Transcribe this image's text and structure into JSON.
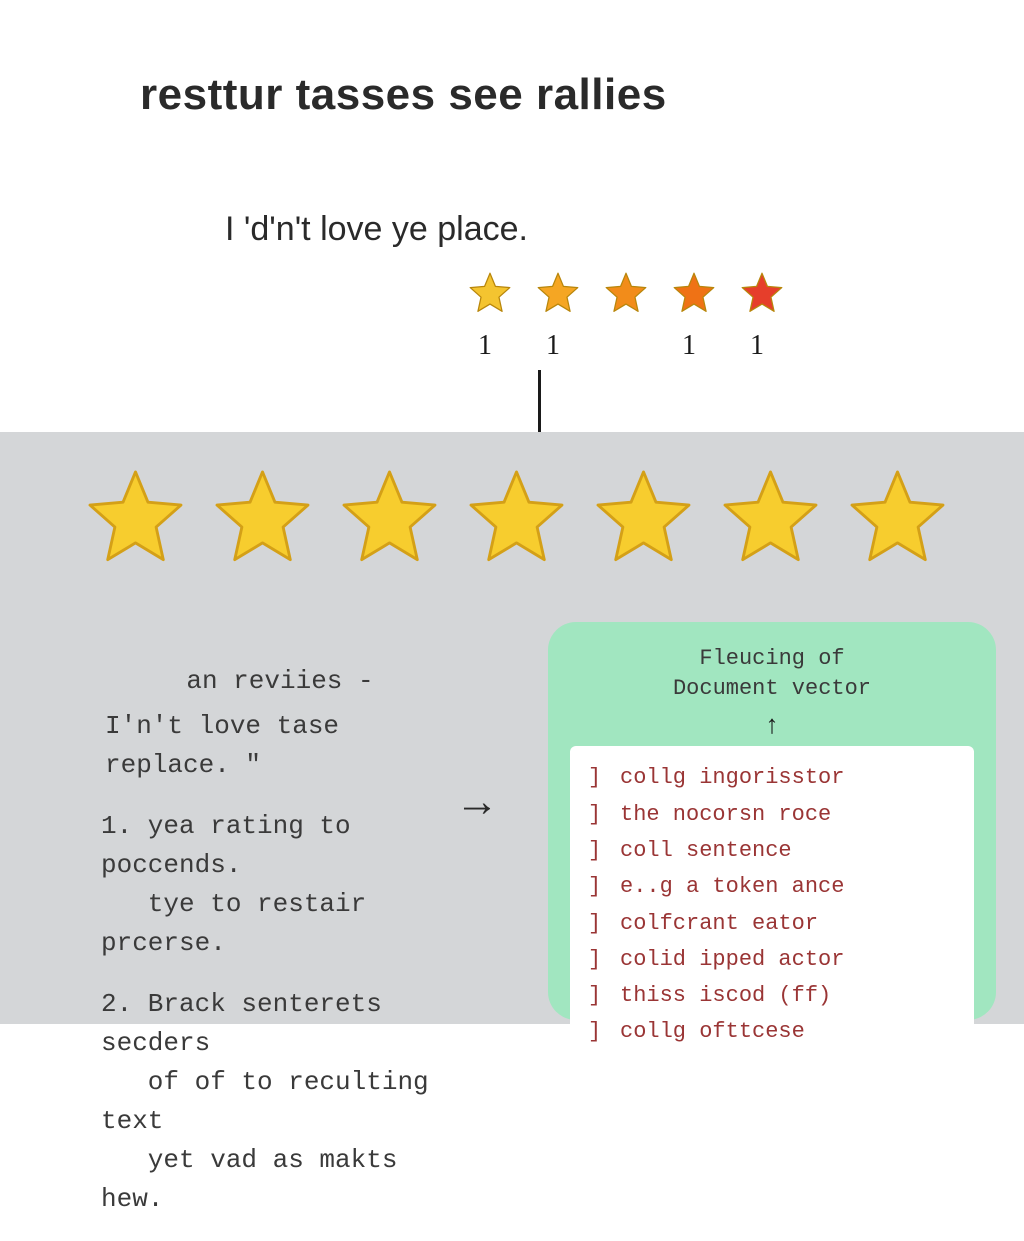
{
  "title": "resttur tasses see rallies",
  "review_text": "I 'd'n't love ye place.",
  "small_stars": {
    "count": 5,
    "colors": [
      "#f4c430",
      "#f5a623",
      "#f28c1a",
      "#ef7215",
      "#e63e2b"
    ],
    "stroke": "#b8860b",
    "size": 50
  },
  "star_numbers": [
    "1",
    "1",
    "",
    "1",
    "1"
  ],
  "number_fontsize": 28,
  "connector_color": "#1a1a1a",
  "big_stars": {
    "count": 7,
    "fill": "#f7cd2e",
    "stroke": "#d4a017",
    "size": 115
  },
  "gray_panel_bg": "#d4d6d8",
  "left_block": {
    "header": "an reviies -",
    "quote": "I'n't love tase replace. \"",
    "items": [
      {
        "num": "1.",
        "lines": [
          "yea rating to poccends.",
          "tye to restair prcerse."
        ]
      },
      {
        "num": "2.",
        "lines": [
          "Brack senterets secders",
          "of of to reculting text",
          "yet vad as makts hew."
        ]
      }
    ],
    "fontsize": 26,
    "color": "#3a3a3a"
  },
  "arrow_glyph": "→",
  "green_panel": {
    "bg": "#a1e6c0",
    "title_line1": "Fleucing of",
    "title_line2": "Document vector",
    "up_arrow": "↑",
    "list_bg": "#ffffff",
    "list_color": "#9a3535",
    "list_fontsize": 22,
    "items": [
      "collg ingorisstor",
      "the nocorsn roce",
      "coll sentence",
      "e..g a token ance",
      "colfcrant eator",
      "colid ipped actor",
      "thiss iscod (ff)",
      "collg ofttcese"
    ]
  }
}
